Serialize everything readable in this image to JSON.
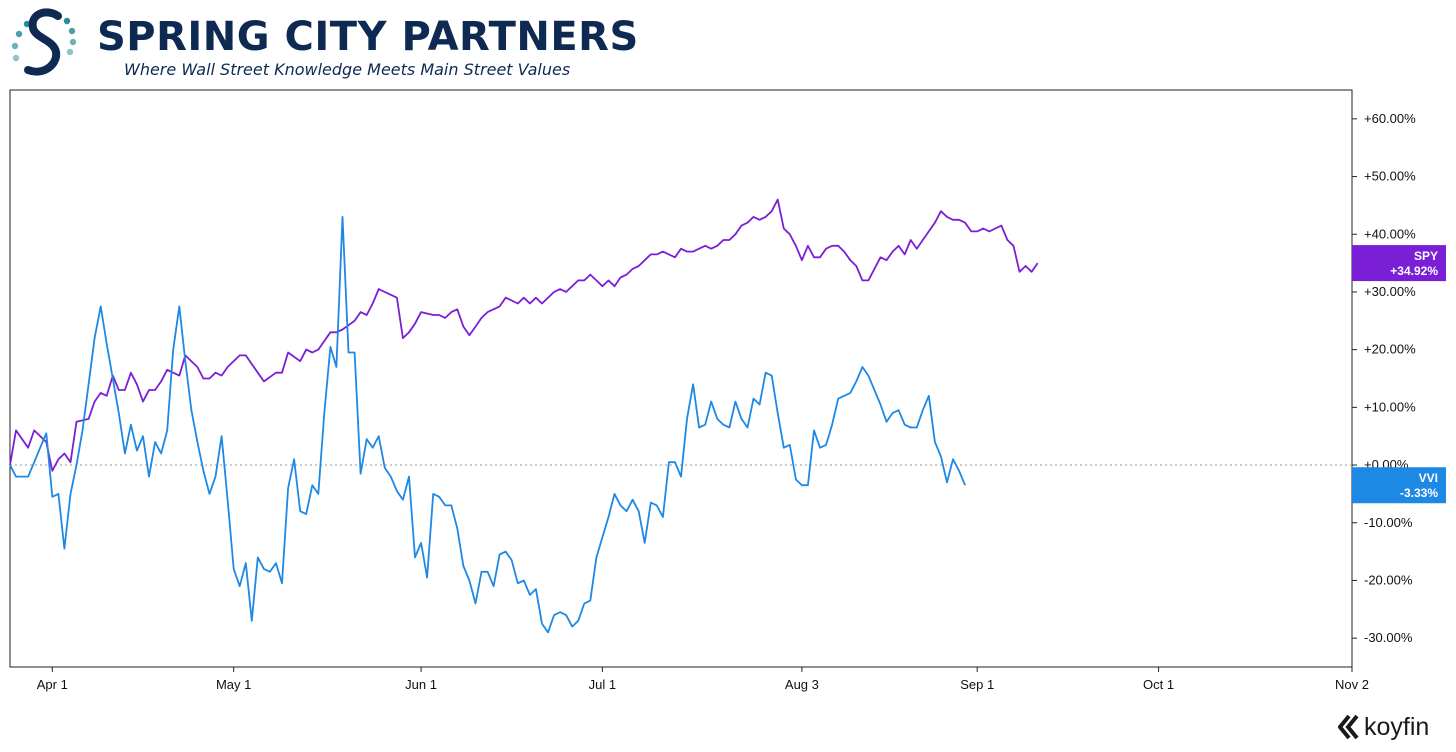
{
  "brand": {
    "name": "SPRING CITY PARTNERS",
    "tagline": "Where Wall Street Knowledge Meets Main Street Values",
    "colors": {
      "navy": "#0f2a52",
      "teal": "#2b8a9a",
      "light_teal": "#8cc4cc"
    }
  },
  "watermark": {
    "text": "koyfin",
    "icon": "koyfin-logo-icon"
  },
  "chart_data": {
    "type": "line",
    "title": "",
    "xlabel": "",
    "ylabel": "",
    "ylim": [
      -35,
      65
    ],
    "grid": false,
    "zero_line": "dotted",
    "x_ticks": [
      "Apr 1",
      "May 1",
      "Jun 1",
      "Jul 1",
      "Aug 3",
      "Sep 1",
      "Oct 1",
      "Nov 2"
    ],
    "x_tick_days": [
      0,
      30,
      61,
      91,
      124,
      153,
      183,
      215
    ],
    "x_range_days": [
      -7,
      215
    ],
    "y_ticks": [
      60,
      50,
      40,
      30,
      20,
      10,
      0,
      -10,
      -20,
      -30
    ],
    "y_tick_labels": [
      "+60.00%",
      "+50.00%",
      "+40.00%",
      "+30.00%",
      "+20.00%",
      "+10.00%",
      "+0.00%",
      "-10.00%",
      "-20.00%",
      "-30.00%"
    ],
    "series": [
      {
        "name": "SPY",
        "last_label": "+34.92%",
        "color": "#7b1fd6",
        "points": [
          [
            -7,
            0
          ],
          [
            -6,
            6
          ],
          [
            -4,
            3
          ],
          [
            -3,
            6
          ],
          [
            -1,
            4
          ],
          [
            0,
            -1
          ],
          [
            1,
            1
          ],
          [
            2,
            2
          ],
          [
            3,
            0.5
          ],
          [
            4,
            7.5
          ],
          [
            6,
            8
          ],
          [
            7,
            11
          ],
          [
            8,
            12.5
          ],
          [
            9,
            12
          ],
          [
            10,
            15.5
          ],
          [
            11,
            13
          ],
          [
            12,
            13
          ],
          [
            13,
            16
          ],
          [
            14,
            14
          ],
          [
            15,
            11
          ],
          [
            16,
            13
          ],
          [
            17,
            13
          ],
          [
            18,
            14.5
          ],
          [
            19,
            16.5
          ],
          [
            21,
            15.5
          ],
          [
            22,
            19
          ],
          [
            24,
            17
          ],
          [
            25,
            15
          ],
          [
            26,
            15
          ],
          [
            27,
            16
          ],
          [
            28,
            15.5
          ],
          [
            29,
            17
          ],
          [
            31,
            19
          ],
          [
            32,
            19
          ],
          [
            34,
            16
          ],
          [
            35,
            14.5
          ],
          [
            37,
            16
          ],
          [
            38,
            16
          ],
          [
            39,
            19.5
          ],
          [
            41,
            18
          ],
          [
            42,
            20
          ],
          [
            43,
            19.5
          ],
          [
            44,
            20
          ],
          [
            46,
            23
          ],
          [
            47,
            23
          ],
          [
            48,
            23.5
          ],
          [
            50,
            25
          ],
          [
            51,
            26.5
          ],
          [
            52,
            26
          ],
          [
            53,
            28
          ],
          [
            54,
            30.5
          ],
          [
            56,
            29.5
          ],
          [
            57,
            29
          ],
          [
            58,
            22
          ],
          [
            59,
            23
          ],
          [
            60,
            24.5
          ],
          [
            61,
            26.5
          ],
          [
            63,
            26
          ],
          [
            64,
            26
          ],
          [
            65,
            25.5
          ],
          [
            66,
            26.5
          ],
          [
            67,
            27
          ],
          [
            68,
            24
          ],
          [
            69,
            22.5
          ],
          [
            70,
            24
          ],
          [
            71,
            25.5
          ],
          [
            72,
            26.5
          ],
          [
            74,
            27.5
          ],
          [
            75,
            29
          ],
          [
            77,
            28
          ],
          [
            78,
            29
          ],
          [
            79,
            28
          ],
          [
            80,
            29
          ],
          [
            81,
            28
          ],
          [
            83,
            30
          ],
          [
            84,
            30.5
          ],
          [
            85,
            30
          ],
          [
            86,
            31
          ],
          [
            87,
            32
          ],
          [
            88,
            32
          ],
          [
            89,
            33
          ],
          [
            90,
            32
          ],
          [
            91,
            31
          ],
          [
            92,
            32
          ],
          [
            93,
            31
          ],
          [
            94,
            32.5
          ],
          [
            95,
            33
          ],
          [
            96,
            34
          ],
          [
            97,
            34.5
          ],
          [
            98,
            35.5
          ],
          [
            99,
            36.5
          ],
          [
            100,
            36.5
          ],
          [
            101,
            37
          ],
          [
            103,
            36
          ],
          [
            104,
            37.5
          ],
          [
            105,
            37
          ],
          [
            106,
            37
          ],
          [
            107,
            37.5
          ],
          [
            108,
            38
          ],
          [
            109,
            37.5
          ],
          [
            110,
            38
          ],
          [
            111,
            39
          ],
          [
            112,
            39
          ],
          [
            113,
            40
          ],
          [
            114,
            41.5
          ],
          [
            115,
            42
          ],
          [
            116,
            43
          ],
          [
            117,
            42.5
          ],
          [
            118,
            43
          ],
          [
            119,
            44
          ],
          [
            120,
            46
          ],
          [
            121,
            41
          ],
          [
            122,
            40
          ],
          [
            123,
            38
          ],
          [
            124,
            35.5
          ],
          [
            125,
            38
          ],
          [
            126,
            36
          ],
          [
            127,
            36
          ],
          [
            128,
            37.5
          ],
          [
            129,
            38
          ],
          [
            130,
            38
          ],
          [
            131,
            37
          ],
          [
            132,
            35.5
          ],
          [
            133,
            34.5
          ],
          [
            134,
            32
          ],
          [
            135,
            32
          ],
          [
            136,
            34
          ],
          [
            137,
            36
          ],
          [
            138,
            35.5
          ],
          [
            139,
            37
          ],
          [
            140,
            38
          ],
          [
            141,
            36.5
          ],
          [
            142,
            39
          ],
          [
            143,
            37.5
          ],
          [
            144,
            39
          ],
          [
            145,
            40.5
          ],
          [
            146,
            42
          ],
          [
            147,
            44
          ],
          [
            148,
            43
          ],
          [
            149,
            42.5
          ],
          [
            150,
            42.5
          ],
          [
            151,
            42
          ],
          [
            152,
            40.5
          ],
          [
            153,
            40.5
          ],
          [
            154,
            41
          ],
          [
            155,
            40.5
          ],
          [
            156,
            41
          ],
          [
            157,
            41.5
          ],
          [
            158,
            39
          ],
          [
            159,
            38
          ],
          [
            160,
            33.5
          ],
          [
            161,
            34.5
          ],
          [
            162,
            33.5
          ],
          [
            163,
            35
          ]
        ]
      },
      {
        "name": "VVI",
        "last_label": "-3.33%",
        "color": "#1e88e5",
        "points": [
          [
            -7,
            0
          ],
          [
            -6,
            -2
          ],
          [
            -4,
            -2
          ],
          [
            -3,
            0.5
          ],
          [
            -2,
            3
          ],
          [
            -1,
            5.5
          ],
          [
            0,
            -5.5
          ],
          [
            1,
            -5
          ],
          [
            2,
            -14.5
          ],
          [
            3,
            -5
          ],
          [
            4,
            0
          ],
          [
            5,
            6
          ],
          [
            6,
            14
          ],
          [
            7,
            22
          ],
          [
            8,
            27.5
          ],
          [
            9,
            21
          ],
          [
            10,
            15
          ],
          [
            11,
            9
          ],
          [
            12,
            2
          ],
          [
            13,
            7
          ],
          [
            14,
            2.5
          ],
          [
            15,
            5
          ],
          [
            16,
            -2
          ],
          [
            17,
            4
          ],
          [
            18,
            2
          ],
          [
            19,
            6
          ],
          [
            20,
            20
          ],
          [
            21,
            27.5
          ],
          [
            22,
            18
          ],
          [
            23,
            9.5
          ],
          [
            24,
            4
          ],
          [
            25,
            -1
          ],
          [
            26,
            -5
          ],
          [
            27,
            -2
          ],
          [
            28,
            5
          ],
          [
            29,
            -6
          ],
          [
            30,
            -18
          ],
          [
            31,
            -21
          ],
          [
            32,
            -17
          ],
          [
            33,
            -27
          ],
          [
            34,
            -16
          ],
          [
            35,
            -18
          ],
          [
            36,
            -18.5
          ],
          [
            37,
            -17
          ],
          [
            38,
            -20.5
          ],
          [
            39,
            -4
          ],
          [
            40,
            1
          ],
          [
            41,
            -8
          ],
          [
            42,
            -8.5
          ],
          [
            43,
            -3.5
          ],
          [
            44,
            -5
          ],
          [
            45,
            9
          ],
          [
            46,
            20.5
          ],
          [
            47,
            17
          ],
          [
            48,
            43
          ],
          [
            49,
            19.5
          ],
          [
            50,
            19.5
          ],
          [
            51,
            -1.5
          ],
          [
            52,
            4.5
          ],
          [
            53,
            3
          ],
          [
            54,
            5
          ],
          [
            55,
            -0.5
          ],
          [
            56,
            -2
          ],
          [
            57,
            -4.5
          ],
          [
            58,
            -6
          ],
          [
            59,
            -2
          ],
          [
            60,
            -16
          ],
          [
            61,
            -13.5
          ],
          [
            62,
            -19.5
          ],
          [
            63,
            -5
          ],
          [
            64,
            -5.5
          ],
          [
            65,
            -7
          ],
          [
            66,
            -7
          ],
          [
            67,
            -11
          ],
          [
            68,
            -17.5
          ],
          [
            69,
            -20
          ],
          [
            70,
            -24
          ],
          [
            71,
            -18.5
          ],
          [
            72,
            -18.5
          ],
          [
            73,
            -21
          ],
          [
            74,
            -15.5
          ],
          [
            75,
            -15
          ],
          [
            76,
            -16.5
          ],
          [
            77,
            -20.5
          ],
          [
            78,
            -20
          ],
          [
            79,
            -22.5
          ],
          [
            80,
            -21.5
          ],
          [
            81,
            -27.5
          ],
          [
            82,
            -29
          ],
          [
            83,
            -26
          ],
          [
            84,
            -25.5
          ],
          [
            85,
            -26
          ],
          [
            86,
            -28
          ],
          [
            87,
            -27
          ],
          [
            88,
            -24
          ],
          [
            89,
            -23.5
          ],
          [
            90,
            -16
          ],
          [
            91,
            -12.5
          ],
          [
            92,
            -9
          ],
          [
            93,
            -5
          ],
          [
            94,
            -7
          ],
          [
            95,
            -8
          ],
          [
            96,
            -6
          ],
          [
            97,
            -8
          ],
          [
            98,
            -13.5
          ],
          [
            99,
            -6.5
          ],
          [
            100,
            -7
          ],
          [
            101,
            -9
          ],
          [
            102,
            0.5
          ],
          [
            103,
            0.5
          ],
          [
            104,
            -2
          ],
          [
            105,
            8
          ],
          [
            106,
            14
          ],
          [
            107,
            6.5
          ],
          [
            108,
            7
          ],
          [
            109,
            11
          ],
          [
            110,
            8
          ],
          [
            111,
            7
          ],
          [
            112,
            6.5
          ],
          [
            113,
            11
          ],
          [
            114,
            8
          ],
          [
            115,
            6.5
          ],
          [
            116,
            11.5
          ],
          [
            117,
            10.5
          ],
          [
            118,
            16
          ],
          [
            119,
            15.5
          ],
          [
            120,
            9
          ],
          [
            121,
            3
          ],
          [
            122,
            3.5
          ],
          [
            123,
            -2.5
          ],
          [
            124,
            -3.5
          ],
          [
            125,
            -3.5
          ],
          [
            126,
            6
          ],
          [
            127,
            3
          ],
          [
            128,
            3.5
          ],
          [
            129,
            7
          ],
          [
            130,
            11.5
          ],
          [
            131,
            12
          ],
          [
            132,
            12.5
          ],
          [
            133,
            14.5
          ],
          [
            134,
            17
          ],
          [
            135,
            15.5
          ],
          [
            136,
            13
          ],
          [
            137,
            10.5
          ],
          [
            138,
            7.5
          ],
          [
            139,
            9
          ],
          [
            140,
            9.5
          ],
          [
            141,
            7
          ],
          [
            142,
            6.5
          ],
          [
            143,
            6.5
          ],
          [
            144,
            9.5
          ],
          [
            145,
            12
          ],
          [
            146,
            4
          ],
          [
            147,
            1.5
          ],
          [
            148,
            -3
          ],
          [
            149,
            1
          ],
          [
            150,
            -1
          ],
          [
            151,
            -3.5
          ]
        ]
      }
    ]
  }
}
